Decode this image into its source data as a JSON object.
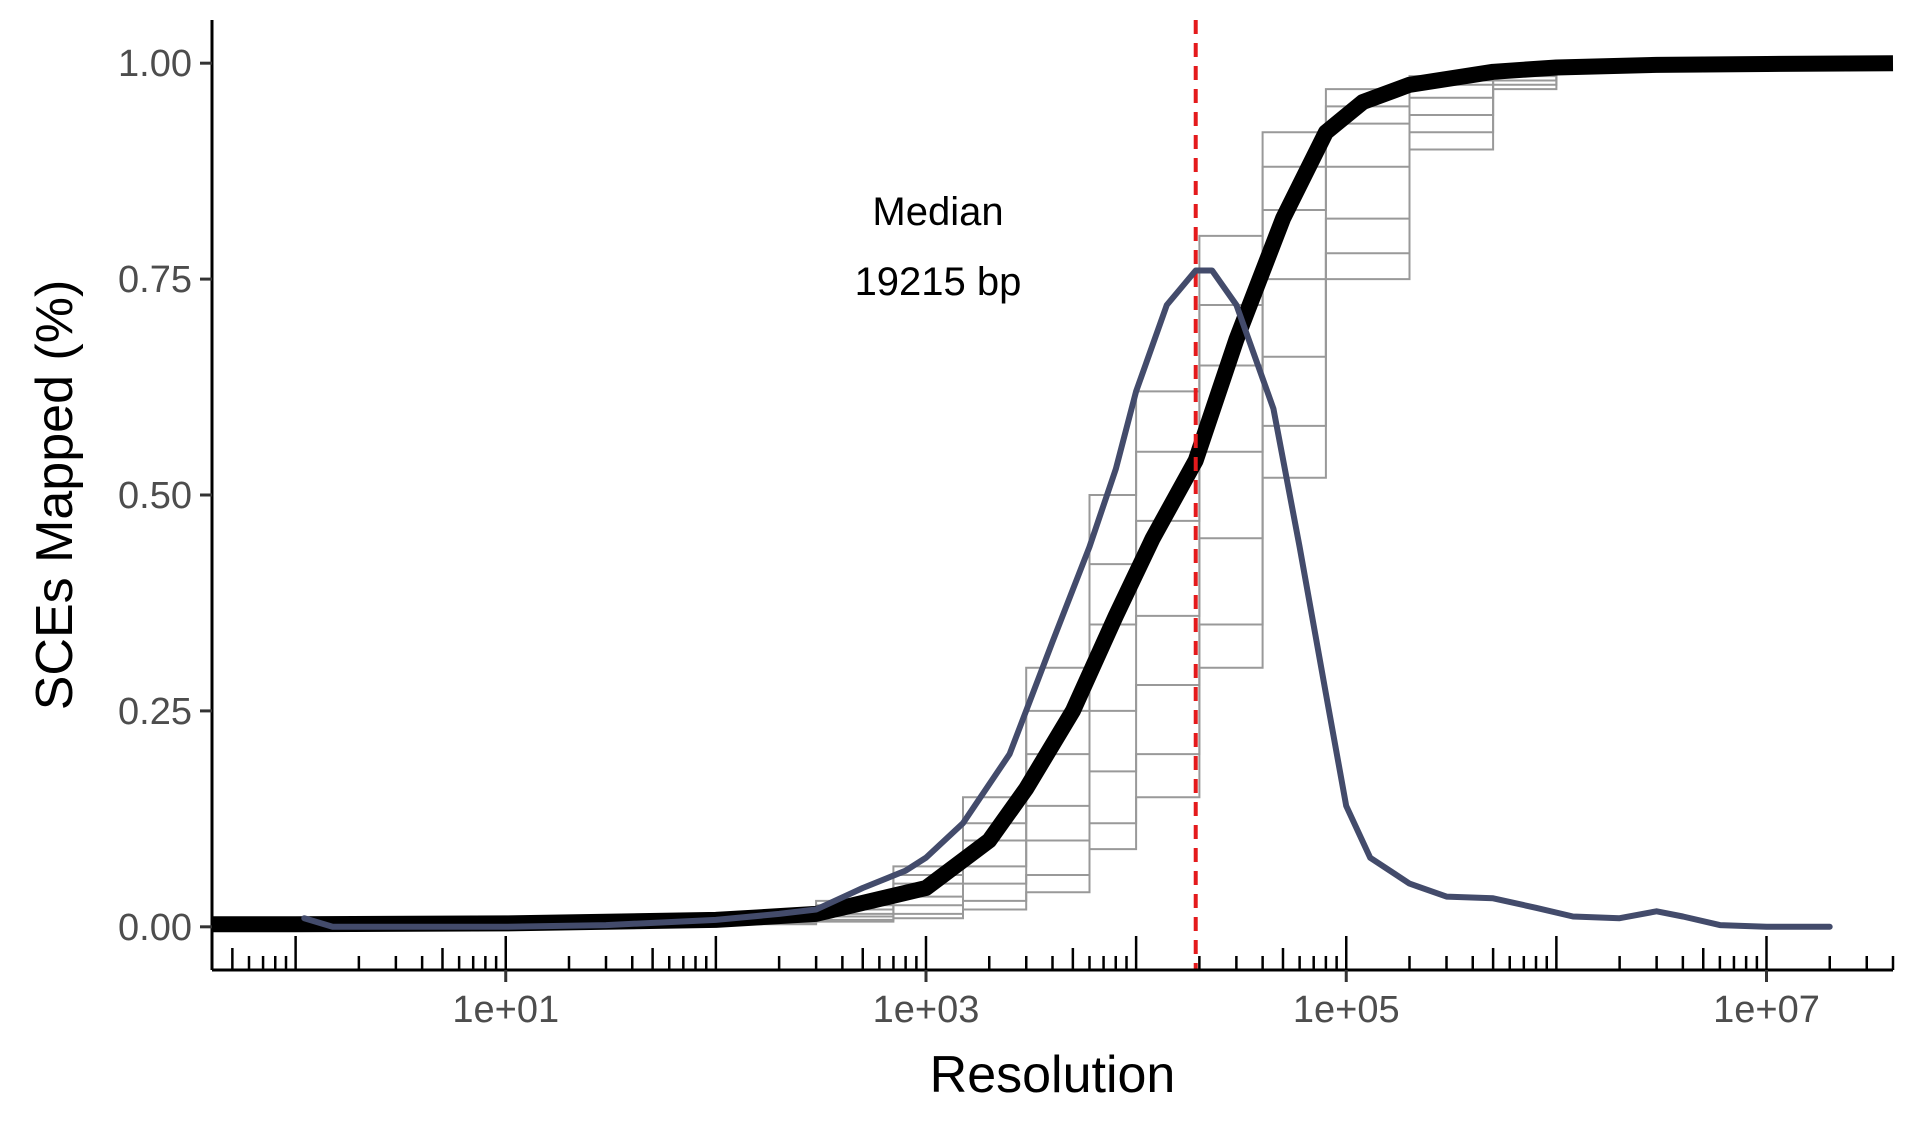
{
  "chart_data": {
    "type": "line",
    "title": "",
    "xlabel": "Resolution",
    "ylabel": "SCEs Mapped (%)",
    "x_scale": "log10",
    "xlim": [
      0.4,
      40000000
    ],
    "ylim": [
      -0.05,
      1.05
    ],
    "x_ticks": [
      {
        "value": 10,
        "label": "1e+01"
      },
      {
        "value": 1000,
        "label": "1e+03"
      },
      {
        "value": 100000,
        "label": "1e+05"
      },
      {
        "value": 10000000,
        "label": "1e+07"
      }
    ],
    "y_ticks": [
      {
        "value": 0,
        "label": "0.00"
      },
      {
        "value": 0.25,
        "label": "0.25"
      },
      {
        "value": 0.5,
        "label": "0.50"
      },
      {
        "value": 0.75,
        "label": "0.75"
      },
      {
        "value": 1,
        "label": "1.00"
      }
    ],
    "grid": false,
    "legend": "none",
    "median_line": {
      "x": 19215,
      "color": "#e41a1c",
      "style": "dashed"
    },
    "annotation": {
      "lines": [
        "Median",
        "19215 bp"
      ],
      "x": 1000,
      "y": 0.78
    },
    "series": [
      {
        "role": "pooled-ecdf",
        "color": "#000000",
        "x": [
          0.4,
          1,
          10,
          100,
          300,
          1000,
          2000,
          3000,
          5000,
          8000,
          12000,
          19215,
          30000,
          50000,
          80000,
          120000,
          200000,
          500000,
          1000000,
          3000000,
          10000000,
          40000000
        ],
        "y": [
          0.003,
          0.003,
          0.004,
          0.008,
          0.015,
          0.045,
          0.1,
          0.16,
          0.25,
          0.36,
          0.45,
          0.54,
          0.68,
          0.82,
          0.92,
          0.955,
          0.975,
          0.99,
          0.995,
          0.998,
          0.999,
          1.0
        ]
      },
      {
        "role": "library-ecdf",
        "color": "#999999",
        "x": [
          50,
          300,
          700,
          1500,
          3000,
          6000,
          10000,
          20000,
          40000,
          80000,
          200000,
          500000,
          1000000
        ],
        "y": [
          0.01,
          0.03,
          0.07,
          0.15,
          0.3,
          0.5,
          0.62,
          0.8,
          0.92,
          0.97,
          0.985,
          0.995,
          1.0
        ]
      },
      {
        "role": "library-ecdf",
        "color": "#999999",
        "x": [
          50,
          300,
          700,
          1500,
          3000,
          6000,
          10000,
          20000,
          40000,
          80000,
          200000,
          500000,
          1000000
        ],
        "y": [
          0.01,
          0.025,
          0.06,
          0.12,
          0.25,
          0.42,
          0.55,
          0.72,
          0.88,
          0.95,
          0.98,
          0.995,
          1.0
        ]
      },
      {
        "role": "library-ecdf",
        "color": "#999999",
        "x": [
          50,
          300,
          700,
          1500,
          3000,
          6000,
          10000,
          20000,
          40000,
          80000,
          200000,
          500000,
          1000000
        ],
        "y": [
          0.008,
          0.02,
          0.05,
          0.1,
          0.2,
          0.35,
          0.47,
          0.65,
          0.83,
          0.93,
          0.975,
          0.99,
          1.0
        ]
      },
      {
        "role": "library-ecdf",
        "color": "#999999",
        "x": [
          50,
          300,
          700,
          1500,
          3000,
          6000,
          10000,
          20000,
          40000,
          80000,
          200000,
          500000,
          1000000
        ],
        "y": [
          0.006,
          0.015,
          0.035,
          0.07,
          0.14,
          0.25,
          0.36,
          0.55,
          0.75,
          0.88,
          0.96,
          0.985,
          1.0
        ]
      },
      {
        "role": "library-ecdf",
        "color": "#999999",
        "x": [
          50,
          300,
          700,
          1500,
          3000,
          6000,
          10000,
          20000,
          40000,
          80000,
          200000,
          500000,
          1000000
        ],
        "y": [
          0.005,
          0.012,
          0.025,
          0.05,
          0.1,
          0.18,
          0.28,
          0.45,
          0.66,
          0.82,
          0.94,
          0.98,
          1.0
        ]
      },
      {
        "role": "library-ecdf",
        "color": "#999999",
        "x": [
          50,
          300,
          700,
          1500,
          3000,
          6000,
          10000,
          20000,
          40000,
          80000,
          200000,
          500000,
          1000000
        ],
        "y": [
          0.004,
          0.008,
          0.015,
          0.03,
          0.06,
          0.12,
          0.2,
          0.35,
          0.58,
          0.78,
          0.92,
          0.975,
          1.0
        ]
      },
      {
        "role": "library-ecdf",
        "color": "#999999",
        "x": [
          50,
          300,
          700,
          1500,
          3000,
          6000,
          10000,
          20000,
          40000,
          80000,
          200000,
          500000,
          1000000
        ],
        "y": [
          0.003,
          0.006,
          0.01,
          0.02,
          0.04,
          0.09,
          0.15,
          0.3,
          0.52,
          0.75,
          0.9,
          0.97,
          1.0
        ]
      },
      {
        "role": "density",
        "color": "#434b6b",
        "x": [
          1.1,
          1.5,
          3,
          10,
          30,
          100,
          200,
          300,
          500,
          800,
          1000,
          1500,
          2500,
          4000,
          6000,
          8000,
          10000,
          14000,
          19215,
          23000,
          30000,
          45000,
          60000,
          80000,
          100000,
          130000,
          200000,
          300000,
          500000,
          800000,
          1200000,
          2000000,
          3000000,
          4000000,
          6000000,
          10000000,
          20000000
        ],
        "y": [
          0.01,
          0.0,
          0.0,
          0.0,
          0.002,
          0.008,
          0.015,
          0.02,
          0.045,
          0.065,
          0.08,
          0.12,
          0.2,
          0.33,
          0.44,
          0.53,
          0.62,
          0.72,
          0.76,
          0.76,
          0.72,
          0.6,
          0.44,
          0.27,
          0.14,
          0.08,
          0.05,
          0.035,
          0.033,
          0.022,
          0.012,
          0.01,
          0.018,
          0.012,
          0.002,
          0.0,
          0.0
        ]
      }
    ]
  }
}
